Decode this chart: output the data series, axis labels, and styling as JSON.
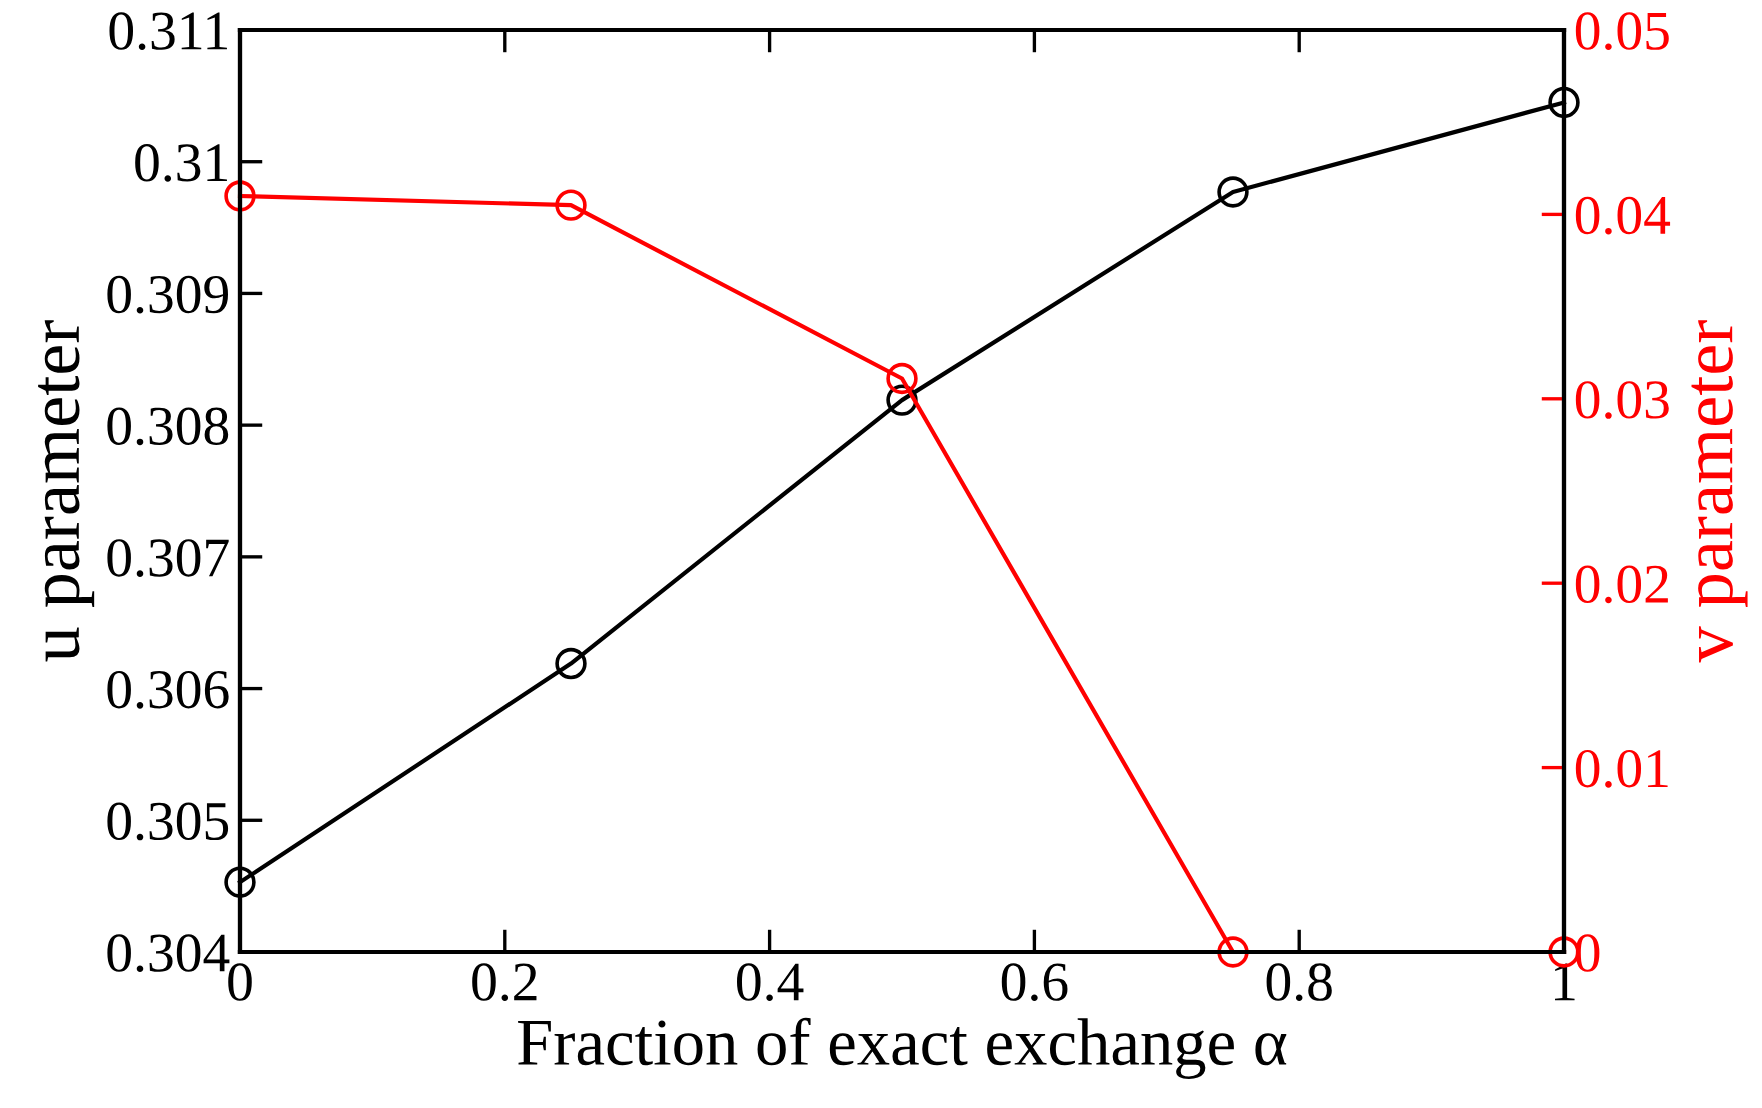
{
  "chart_data": {
    "type": "line",
    "xlabel": "Fraction of exact exchange α",
    "ylabel": "u parameter",
    "y2label": "v parameter",
    "x": [
      0,
      0.25,
      0.5,
      0.75,
      1
    ],
    "series": [
      {
        "color": "#000000",
        "values": [
          0.30453,
          0.30619,
          0.30819,
          0.30977,
          0.31045
        ]
      },
      {
        "color": "#ff0000",
        "axis": "y2",
        "values": [
          0.041,
          0.0405,
          0.0311,
          0,
          0
        ]
      }
    ],
    "xlim": [
      0,
      1
    ],
    "xticks": [
      0,
      0.2,
      0.4,
      0.6,
      0.8,
      1
    ],
    "ylim": [
      0.304,
      0.311
    ],
    "yticks": [
      0.304,
      0.305,
      0.306,
      0.307,
      0.308,
      0.309,
      0.31,
      0.311
    ],
    "y2lim": [
      0,
      0.05
    ],
    "y2ticks": [
      0,
      0.01,
      0.02,
      0.03,
      0.04,
      0.05
    ],
    "marker": "circle",
    "line_style": "solid",
    "grid": false,
    "legend": false
  }
}
